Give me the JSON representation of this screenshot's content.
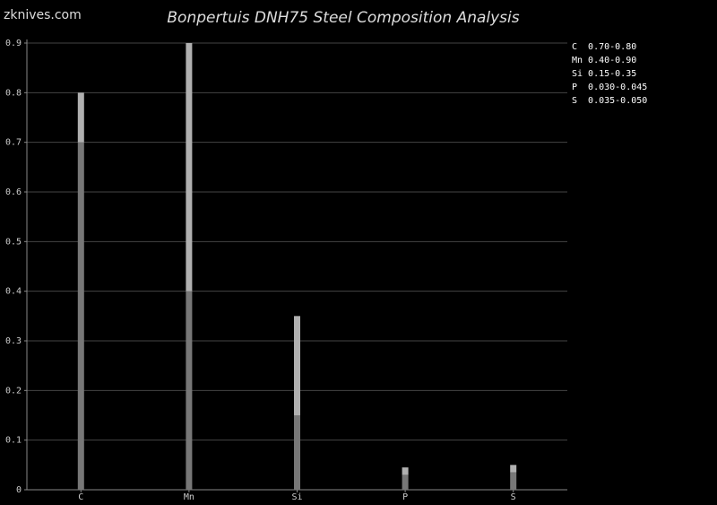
{
  "watermark": "zknives.com",
  "chart_data": {
    "type": "bar",
    "title": "Bonpertuis DNH75 Steel Composition Analysis",
    "categories": [
      "C",
      "Mn",
      "Si",
      "P",
      "S"
    ],
    "low": [
      0.7,
      0.4,
      0.15,
      0.03,
      0.035
    ],
    "high": [
      0.8,
      0.9,
      0.35,
      0.045,
      0.05
    ],
    "low_color": "#777777",
    "high_color": "#b0b0b0",
    "ylim": [
      0,
      0.9
    ],
    "yticks": [
      0,
      0.1,
      0.2,
      0.3,
      0.4,
      0.5,
      0.6,
      0.7,
      0.8,
      0.9
    ],
    "grid": true,
    "legend": [
      "C  0.70-0.80",
      "Mn 0.40-0.90",
      "Si 0.15-0.35",
      "P  0.030-0.045",
      "S  0.035-0.050"
    ]
  }
}
